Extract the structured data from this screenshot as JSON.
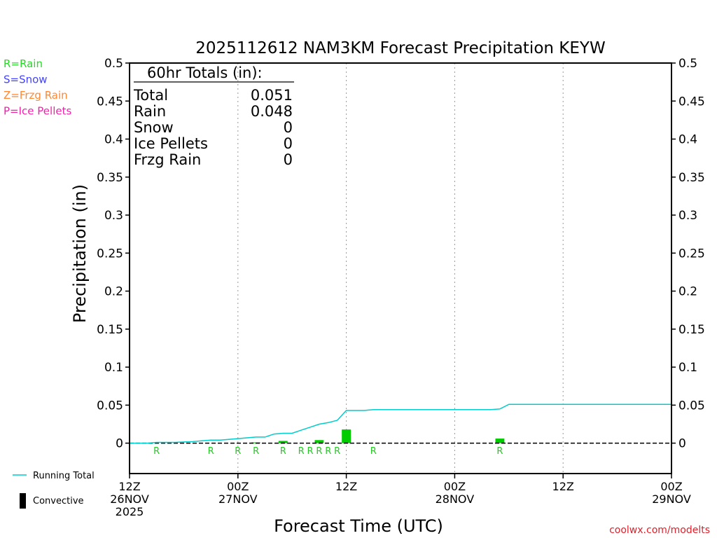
{
  "chart_data": {
    "type": "bar",
    "title": "2025112612 NAM3KM Forecast Precipitation KEYW",
    "xlabel": "Forecast Time (UTC)",
    "ylabel": "Precipitation (in)",
    "ylim": [
      -0.04,
      0.5
    ],
    "xlim_hours": [
      0,
      60
    ],
    "yticks": [
      0,
      0.05,
      0.1,
      0.15,
      0.2,
      0.25,
      0.3,
      0.35,
      0.4,
      0.45,
      0.5
    ],
    "ytick_labels": [
      "0",
      "0.05",
      "0.1",
      "0.15",
      "0.2",
      "0.25",
      "0.3",
      "0.35",
      "0.4",
      "0.45",
      "0.5"
    ],
    "xticks": [
      {
        "hour": 0,
        "lines": [
          "12Z",
          "26NOV",
          "2025"
        ]
      },
      {
        "hour": 12,
        "lines": [
          "00Z",
          "27NOV"
        ]
      },
      {
        "hour": 24,
        "lines": [
          "12Z"
        ]
      },
      {
        "hour": 36,
        "lines": [
          "00Z",
          "28NOV"
        ]
      },
      {
        "hour": 48,
        "lines": [
          "12Z"
        ]
      },
      {
        "hour": 60,
        "lines": [
          "00Z",
          "29NOV"
        ]
      }
    ],
    "grid": "vertical-dotted",
    "precip_type_legend": [
      {
        "label": "R=Rain",
        "color": "#22dd22"
      },
      {
        "label": "S=Snow",
        "color": "#4444ff"
      },
      {
        "label": "Z=Frzg Rain",
        "color": "#ff8833"
      },
      {
        "label": "P=Ice Pellets",
        "color": "#ee22aa"
      }
    ],
    "series_legend": [
      {
        "label": "Running Total",
        "kind": "line",
        "color": "#00cccc"
      },
      {
        "label": "Convective",
        "kind": "bar",
        "color": "#000000"
      }
    ],
    "totals_box": {
      "heading": "60hr Totals (in):",
      "rows": [
        {
          "label": "Total",
          "value": "0.051"
        },
        {
          "label": "Rain",
          "value": "0.048"
        },
        {
          "label": "Snow",
          "value": "0"
        },
        {
          "label": "Ice Pellets",
          "value": "0"
        },
        {
          "label": "Frzg Rain",
          "value": "0"
        }
      ]
    },
    "bars": [
      {
        "hour": 14,
        "value": 0.001
      },
      {
        "hour": 17,
        "value": 0.003
      },
      {
        "hour": 21,
        "value": 0.004
      },
      {
        "hour": 24,
        "value": 0.018
      },
      {
        "hour": 41,
        "value": 0.006
      }
    ],
    "bar_color": "#00cc00",
    "running_total": {
      "hours": [
        0,
        2,
        3,
        5,
        7,
        8,
        9,
        10,
        11,
        12,
        13,
        14,
        15,
        16,
        17,
        18,
        19,
        20,
        21,
        22,
        23,
        24,
        26,
        27,
        28,
        40,
        41,
        42,
        60
      ],
      "values": [
        0,
        0,
        0.001,
        0.001,
        0.002,
        0.003,
        0.004,
        0.004,
        0.005,
        0.006,
        0.007,
        0.008,
        0.008,
        0.012,
        0.013,
        0.013,
        0.017,
        0.021,
        0.025,
        0.027,
        0.03,
        0.043,
        0.043,
        0.044,
        0.044,
        0.044,
        0.045,
        0.051,
        0.051
      ]
    },
    "type_markers": [
      {
        "hour": 3,
        "label": "R"
      },
      {
        "hour": 9,
        "label": "R"
      },
      {
        "hour": 12,
        "label": "R"
      },
      {
        "hour": 14,
        "label": "R"
      },
      {
        "hour": 17,
        "label": "R"
      },
      {
        "hour": 19,
        "label": "R"
      },
      {
        "hour": 20,
        "label": "R"
      },
      {
        "hour": 21,
        "label": "R"
      },
      {
        "hour": 22,
        "label": "R"
      },
      {
        "hour": 23,
        "label": "R"
      },
      {
        "hour": 27,
        "label": "R"
      },
      {
        "hour": 41,
        "label": "R"
      }
    ],
    "credit": "coolwx.com/modelts"
  }
}
